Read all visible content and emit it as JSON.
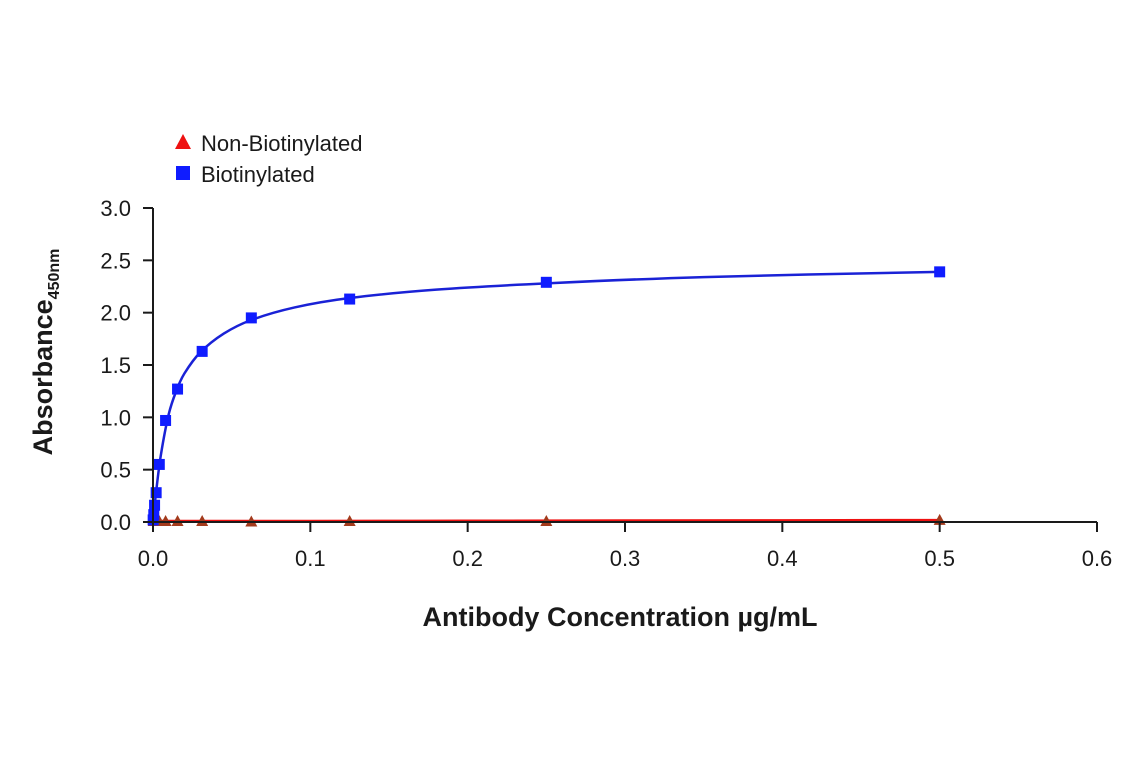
{
  "chart_data": {
    "type": "scatter",
    "xlabel": "Antibody Concentration µg/mL",
    "ylabel": "Absorbance",
    "ylabel_subscript": "450nm",
    "xlim": [
      0,
      0.6
    ],
    "ylim": [
      0,
      3.0
    ],
    "x_ticks": [
      0.0,
      0.1,
      0.2,
      0.3,
      0.4,
      0.5,
      0.6
    ],
    "x_tick_labels": [
      "0.0",
      "0.1",
      "0.2",
      "0.3",
      "0.4",
      "0.5",
      "0.6"
    ],
    "y_ticks": [
      0.0,
      0.5,
      1.0,
      1.5,
      2.0,
      2.5,
      3.0
    ],
    "y_tick_labels": [
      "0.0",
      "0.5",
      "1.0",
      "1.5",
      "2.0",
      "2.5",
      "3.0"
    ],
    "grid": false,
    "legend_position": "top-left",
    "series": [
      {
        "name": "Non-Biotinylated",
        "marker": "triangle",
        "color": "#ee1111",
        "marker_fill": "#a33a1c",
        "x": [
          0.0005,
          0.001,
          0.002,
          0.004,
          0.008,
          0.0156,
          0.03125,
          0.0625,
          0.125,
          0.25,
          0.5
        ],
        "y": [
          0.01,
          0.01,
          0.01,
          0.01,
          0.01,
          0.01,
          0.01,
          0.005,
          0.01,
          0.01,
          0.02
        ]
      },
      {
        "name": "Biotinylated",
        "marker": "square",
        "color": "#1a22d6",
        "marker_fill": "#0f1cff",
        "x": [
          0.0001,
          0.0005,
          0.001,
          0.002,
          0.004,
          0.008,
          0.0156,
          0.03125,
          0.0625,
          0.125,
          0.25,
          0.5
        ],
        "y": [
          0.02,
          0.07,
          0.16,
          0.28,
          0.55,
          0.97,
          1.27,
          1.63,
          1.95,
          2.13,
          2.29,
          2.39
        ]
      }
    ],
    "fit_curves": {
      "Non-Biotinylated": {
        "x": [
          0.0,
          0.05,
          0.1,
          0.2,
          0.3,
          0.4,
          0.5
        ],
        "y": [
          0.01,
          0.01,
          0.01,
          0.012,
          0.014,
          0.016,
          0.018
        ]
      },
      "Biotinylated": {
        "x": [
          0.0,
          0.002,
          0.005,
          0.01,
          0.015,
          0.02,
          0.03,
          0.045,
          0.0625,
          0.09,
          0.125,
          0.18,
          0.25,
          0.35,
          0.5
        ],
        "y": [
          0.0,
          0.29,
          0.64,
          1.03,
          1.26,
          1.42,
          1.62,
          1.8,
          1.93,
          2.05,
          2.14,
          2.22,
          2.28,
          2.34,
          2.39
        ]
      }
    }
  }
}
